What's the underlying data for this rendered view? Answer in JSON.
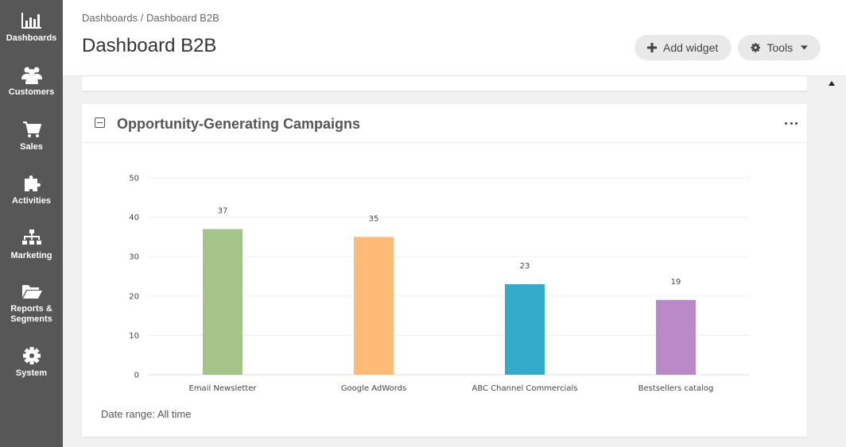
{
  "sidebar": {
    "items": [
      {
        "label": "Dashboards",
        "icon": "bar-chart-icon"
      },
      {
        "label": "Customers",
        "icon": "users-icon"
      },
      {
        "label": "Sales",
        "icon": "shopping-cart-icon"
      },
      {
        "label": "Activities",
        "icon": "puzzle-icon"
      },
      {
        "label": "Marketing",
        "icon": "sitemap-icon"
      },
      {
        "label": "Reports &",
        "label2": "Segments",
        "icon": "folder-icon"
      },
      {
        "label": "System",
        "icon": "gear-icon"
      }
    ]
  },
  "header": {
    "breadcrumb_root": "Dashboards",
    "breadcrumb_sep": " / ",
    "breadcrumb_current": "Dashboard B2B",
    "title": "Dashboard B2B",
    "add_widget": "Add widget",
    "tools": "Tools"
  },
  "widget": {
    "title": "Opportunity-Generating Campaigns",
    "date_range": "Date range: All time"
  },
  "chart_data": {
    "type": "bar",
    "categories": [
      "Email Newsletter",
      "Google AdWords",
      "ABC Channel Commercials",
      "Bestsellers catalog"
    ],
    "values": [
      37,
      35,
      23,
      19
    ],
    "colors": [
      "#a6c487",
      "#ffba78",
      "#35abcc",
      "#bb88c8"
    ],
    "ylim": [
      0,
      50
    ],
    "yticks": [
      0,
      10,
      20,
      30,
      40,
      50
    ],
    "grid": true
  }
}
